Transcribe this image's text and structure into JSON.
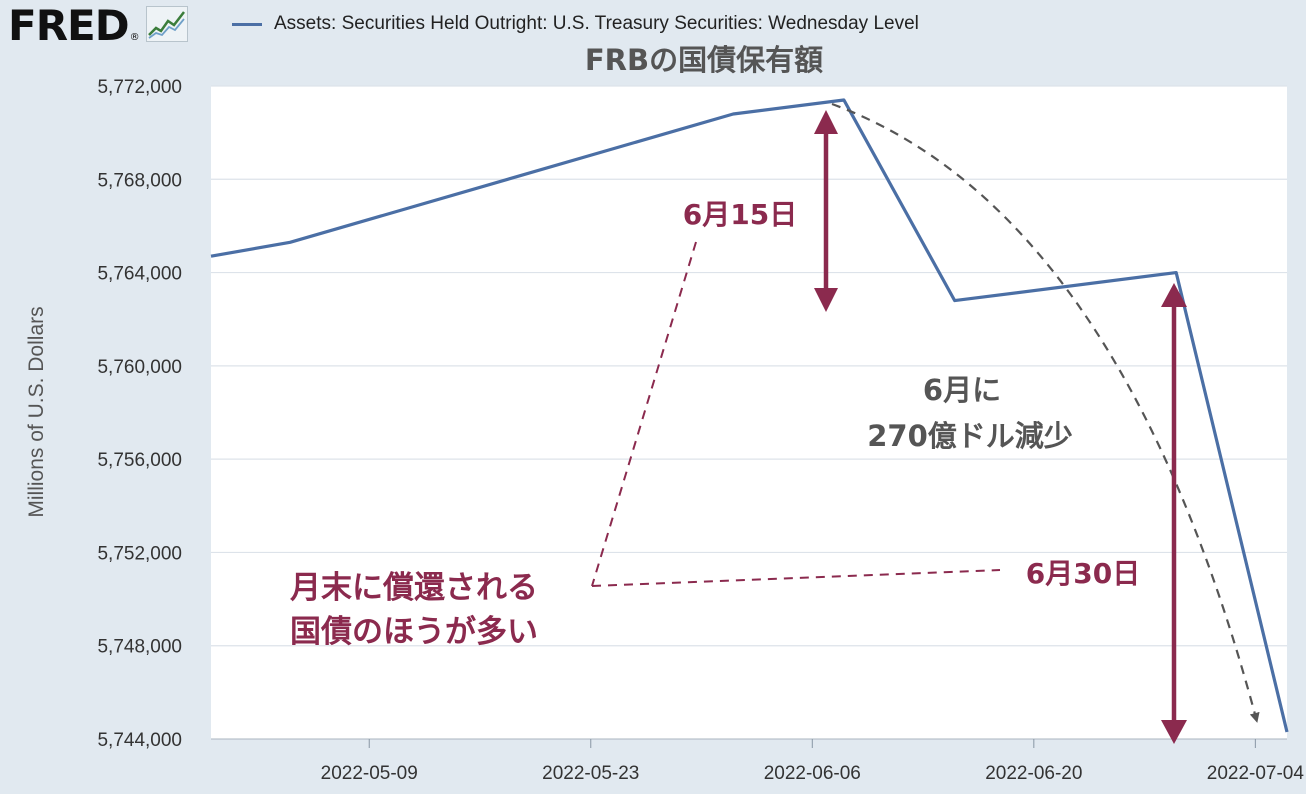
{
  "header": {
    "logo_text": "FRED",
    "logo_mark": "®",
    "logo_icon": "line-chart-icon"
  },
  "colors": {
    "background": "#e1e9f0",
    "plot_background": "#ffffff",
    "series": "#4b6fa5",
    "annotation": "#8b2a4e",
    "annotation_gray": "#555555",
    "grid": "#dde3ea"
  },
  "chart_data": {
    "type": "line",
    "title": "FRBの国債保有額",
    "xlabel": "",
    "ylabel": "Millions of U.S. Dollars",
    "xlim": [
      "2022-04-29",
      "2022-07-06"
    ],
    "ylim": [
      5744000,
      5772000
    ],
    "grid": true,
    "legend": "top-left",
    "yticks": [
      5744000,
      5748000,
      5752000,
      5756000,
      5760000,
      5764000,
      5768000,
      5772000
    ],
    "ytick_labels": [
      "5,744,000",
      "5,748,000",
      "5,752,000",
      "5,756,000",
      "5,760,000",
      "5,764,000",
      "5,768,000",
      "5,772,000"
    ],
    "xticks": [
      "2022-05-09",
      "2022-05-23",
      "2022-06-06",
      "2022-06-20",
      "2022-07-04"
    ],
    "xtick_labels": [
      "2022-05-09",
      "2022-05-23",
      "2022-06-06",
      "2022-06-20",
      "2022-07-04"
    ],
    "series": [
      {
        "name": "Assets: Securities Held Outright: U.S. Treasury Securities: Wednesday Level",
        "x": [
          "2022-04-29",
          "2022-05-04",
          "2022-06-01",
          "2022-06-08",
          "2022-06-15",
          "2022-06-29",
          "2022-07-06"
        ],
        "y": [
          5764700,
          5765300,
          5770800,
          5771400,
          5762800,
          5764000,
          5744300
        ]
      }
    ],
    "annotations": [
      {
        "text": "6月15日",
        "color": "annotation"
      },
      {
        "text": "6月30日",
        "color": "annotation"
      },
      {
        "text": "6月に",
        "color": "annotation_gray"
      },
      {
        "text": "270億ドル減少",
        "color": "annotation_gray"
      },
      {
        "text": "月末に償還される",
        "color": "annotation"
      },
      {
        "text": "国債のほうが多い",
        "color": "annotation"
      }
    ]
  }
}
